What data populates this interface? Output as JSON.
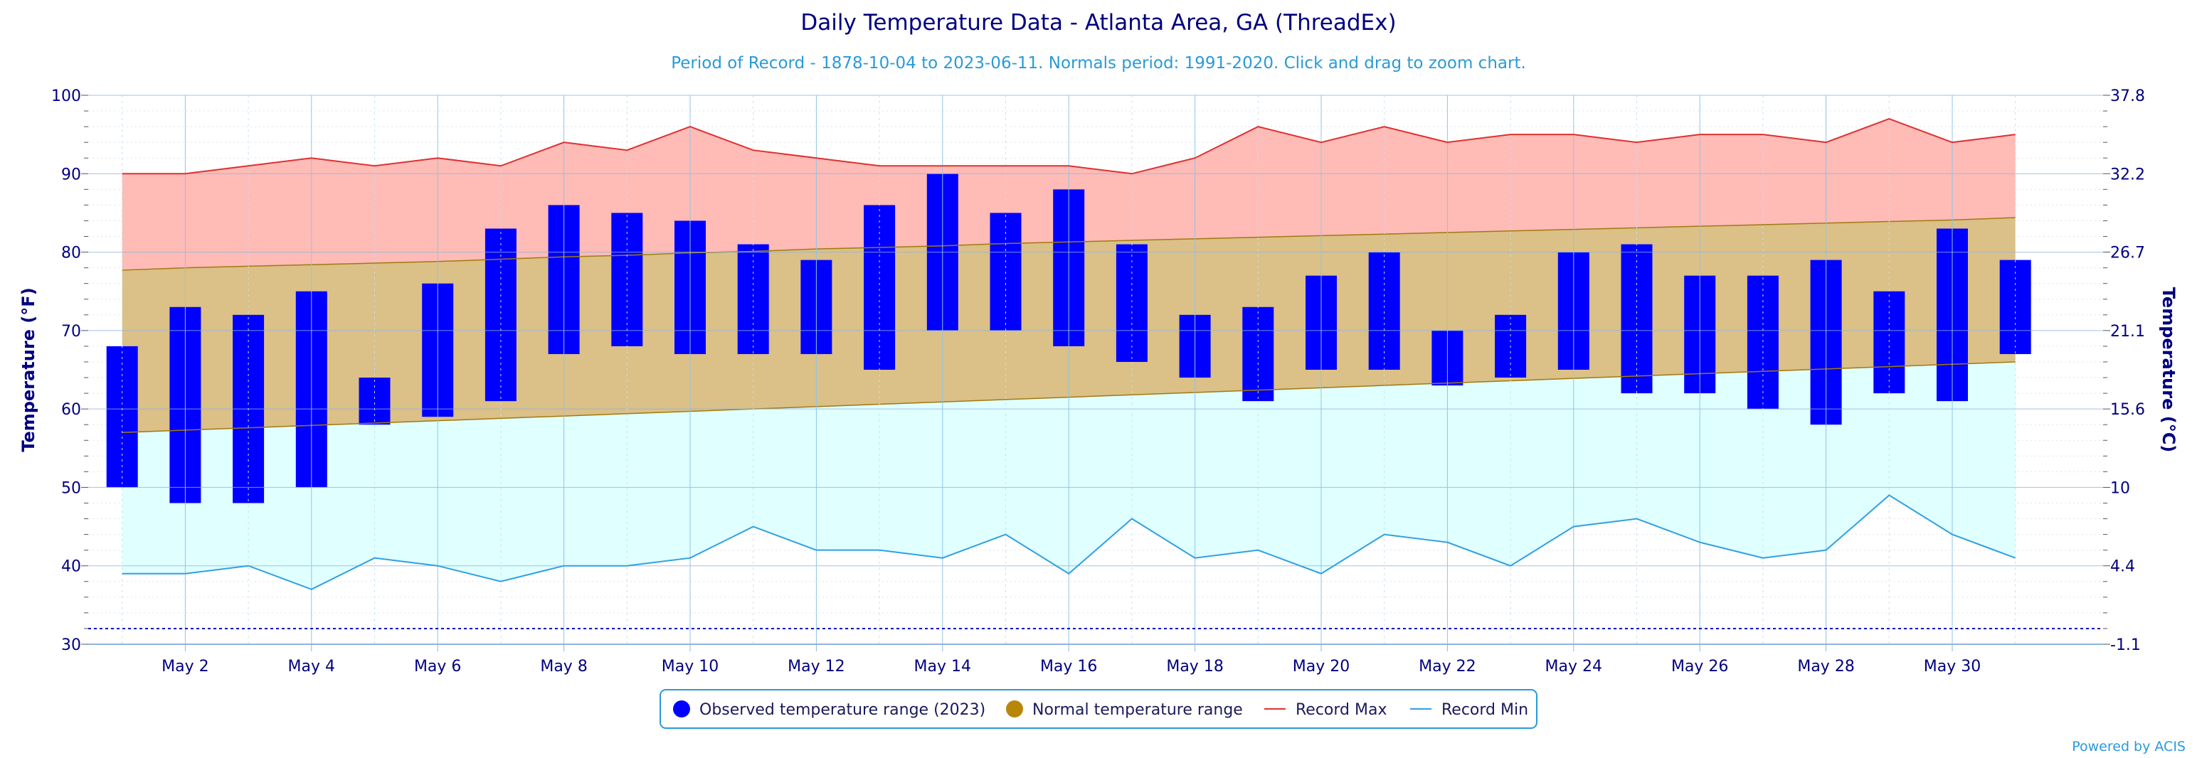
{
  "chart_data": {
    "type": "bar",
    "title": "Daily Temperature Data - Atlanta Area, GA (ThreadEx)",
    "subtitle": "Period of Record - 1878-10-04 to 2023-06-11. Normals period: 1991-2020. Click and drag to zoom chart.",
    "ylabel_left": "Temperature (°F)",
    "ylabel_right": "Temperature (°C)",
    "ylim": [
      30,
      100
    ],
    "yticks_left": [
      "30",
      "40",
      "50",
      "60",
      "70",
      "80",
      "90",
      "100"
    ],
    "yticks_right": [
      "-1.1",
      "4.4",
      "10",
      "15.6",
      "21.1",
      "26.7",
      "32.2",
      "37.8"
    ],
    "x_tick_labels": [
      "May 2",
      "May 4",
      "May 6",
      "May 8",
      "May 10",
      "May 12",
      "May 14",
      "May 16",
      "May 18",
      "May 20",
      "May 22",
      "May 24",
      "May 26",
      "May 28",
      "May 30"
    ],
    "days": [
      1,
      2,
      3,
      4,
      5,
      6,
      7,
      8,
      9,
      10,
      11,
      12,
      13,
      14,
      15,
      16,
      17,
      18,
      19,
      20,
      21,
      22,
      23,
      24,
      25,
      26,
      27,
      28,
      29,
      30,
      31
    ],
    "observed_low": [
      50,
      48,
      48,
      50,
      58,
      59,
      61,
      67,
      68,
      67,
      67,
      67,
      65,
      70,
      70,
      68,
      66,
      64,
      61,
      65,
      65,
      63,
      64,
      65,
      62,
      62,
      60,
      58,
      62,
      61,
      67
    ],
    "observed_high": [
      68,
      73,
      72,
      75,
      64,
      76,
      83,
      86,
      85,
      84,
      81,
      79,
      86,
      90,
      85,
      88,
      81,
      72,
      73,
      77,
      80,
      70,
      72,
      80,
      81,
      77,
      77,
      79,
      75,
      83,
      79
    ],
    "normal_low": [
      57,
      57.3,
      57.6,
      57.9,
      58.2,
      58.5,
      58.8,
      59.1,
      59.4,
      59.7,
      60,
      60.3,
      60.6,
      60.9,
      61.2,
      61.5,
      61.8,
      62.1,
      62.4,
      62.7,
      63,
      63.3,
      63.6,
      63.9,
      64.2,
      64.5,
      64.8,
      65.1,
      65.4,
      65.7,
      66
    ],
    "normal_high": [
      77.7,
      78,
      78.2,
      78.4,
      78.6,
      78.8,
      79.1,
      79.4,
      79.6,
      79.9,
      80.1,
      80.4,
      80.6,
      80.8,
      81.1,
      81.3,
      81.5,
      81.7,
      81.9,
      82.1,
      82.3,
      82.5,
      82.7,
      82.9,
      83.1,
      83.3,
      83.5,
      83.7,
      83.9,
      84.1,
      84.4
    ],
    "record_max": [
      90,
      90,
      91,
      92,
      91,
      92,
      91,
      94,
      93,
      96,
      93,
      92,
      91,
      91,
      91,
      91,
      90,
      92,
      96,
      94,
      96,
      94,
      95,
      95,
      94,
      95,
      95,
      94,
      97,
      94,
      95
    ],
    "record_min": [
      39,
      39,
      40,
      37,
      41,
      40,
      38,
      40,
      40,
      41,
      45,
      42,
      42,
      41,
      44,
      39,
      46,
      41,
      42,
      39,
      44,
      43,
      40,
      45,
      46,
      43,
      41,
      42,
      49,
      44,
      41
    ],
    "freeze_line_value": 32,
    "legend": {
      "observed": "Observed temperature range (2023)",
      "normal": "Normal temperature range",
      "record_max": "Record Max",
      "record_min": "Record Min"
    },
    "colors": {
      "observed": "#0000ff",
      "normal_fill": "#dbc087",
      "normal_marker": "#b8860b",
      "normal_edge": "#a07a10",
      "record_max_fill": "#ffbbb6",
      "record_max_line": "#e03030",
      "record_min_fill": "#e0ffff",
      "record_min_line": "#30a0e0",
      "freeze_line": "#0000cc"
    }
  },
  "credit": "Powered by ACIS"
}
